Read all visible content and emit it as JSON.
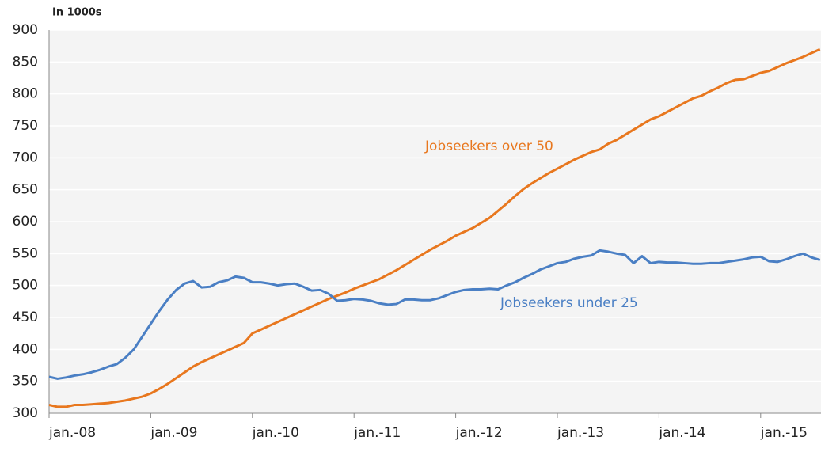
{
  "chart_data": {
    "type": "line",
    "y_unit_label": "In 1000s",
    "categories": [
      "jan.-08",
      null,
      null,
      null,
      null,
      null,
      null,
      null,
      null,
      null,
      null,
      null,
      "jan.-09",
      null,
      null,
      null,
      null,
      null,
      null,
      null,
      null,
      null,
      null,
      null,
      "jan.-10",
      null,
      null,
      null,
      null,
      null,
      null,
      null,
      null,
      null,
      null,
      null,
      "jan.-11",
      null,
      null,
      null,
      null,
      null,
      null,
      null,
      null,
      null,
      null,
      null,
      "jan.-12",
      null,
      null,
      null,
      null,
      null,
      null,
      null,
      null,
      null,
      null,
      null,
      "jan.-13",
      null,
      null,
      null,
      null,
      null,
      null,
      null,
      null,
      null,
      null,
      null,
      "jan.-14",
      null,
      null,
      null,
      null,
      null,
      null,
      null,
      null,
      null,
      null,
      null,
      "jan.-15",
      null,
      null,
      null,
      null,
      null,
      null,
      null
    ],
    "series": [
      {
        "name": "Jobseekers over 50",
        "color": "#e8771e",
        "values": [
          313,
          310,
          310,
          313,
          313,
          314,
          315,
          316,
          318,
          320,
          323,
          326,
          331,
          338,
          346,
          355,
          364,
          373,
          380,
          386,
          392,
          398,
          404,
          410,
          425,
          431,
          437,
          443,
          449,
          455,
          461,
          467,
          473,
          479,
          484,
          489,
          495,
          500,
          505,
          510,
          517,
          524,
          532,
          540,
          548,
          556,
          563,
          570,
          578,
          584,
          590,
          598,
          606,
          617,
          628,
          640,
          651,
          660,
          668,
          676,
          683,
          690,
          697,
          703,
          709,
          713,
          722,
          728,
          736,
          744,
          752,
          760,
          765,
          772,
          779,
          786,
          793,
          797,
          804,
          810,
          817,
          822,
          823,
          828,
          833,
          836,
          842,
          848,
          853,
          858,
          864,
          870
        ]
      },
      {
        "name": "Jobseekers under 25",
        "color": "#4a7fc4",
        "values": [
          357,
          354,
          356,
          359,
          361,
          364,
          368,
          373,
          377,
          387,
          400,
          420,
          440,
          460,
          478,
          493,
          503,
          507,
          497,
          498,
          505,
          508,
          514,
          512,
          505,
          505,
          503,
          500,
          502,
          503,
          498,
          492,
          493,
          487,
          476,
          477,
          479,
          478,
          476,
          472,
          470,
          471,
          478,
          478,
          477,
          477,
          480,
          485,
          490,
          493,
          494,
          494,
          495,
          494,
          500,
          505,
          512,
          518,
          525,
          530,
          535,
          537,
          542,
          545,
          547,
          555,
          553,
          550,
          548,
          535,
          546,
          535,
          537,
          536,
          536,
          535,
          534,
          534,
          535,
          535,
          537,
          539,
          541,
          544,
          545,
          538,
          537,
          541,
          546,
          550,
          544,
          540
        ]
      }
    ],
    "ylim": [
      300,
      900
    ],
    "yticks": [
      300,
      350,
      400,
      450,
      500,
      550,
      600,
      650,
      700,
      750,
      800,
      850,
      900
    ],
    "grid": true
  }
}
